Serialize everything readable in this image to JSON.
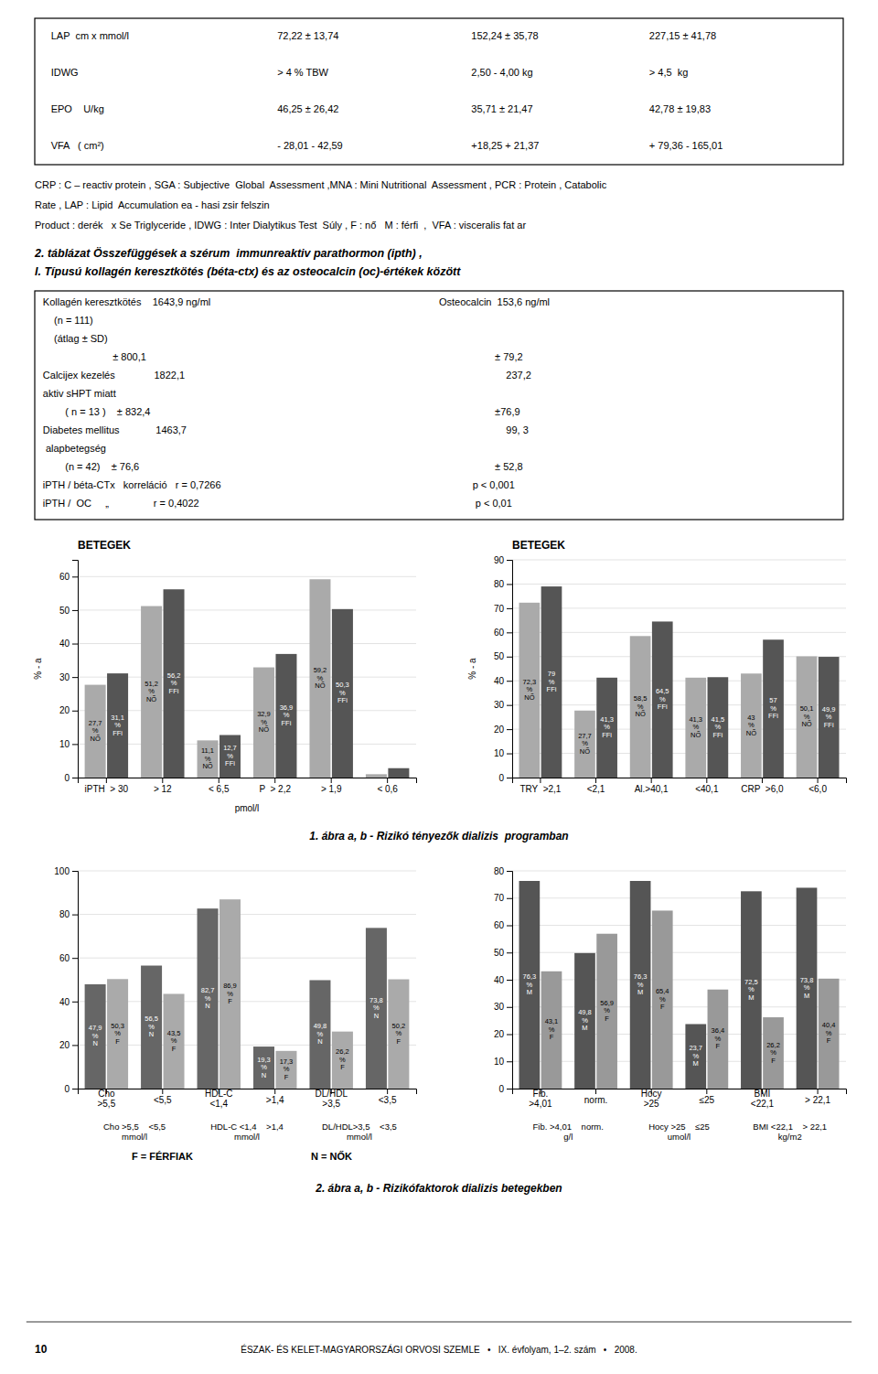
{
  "table1": {
    "rows": [
      [
        "LAP  cm x mmol/l",
        "72,22 ± 13,74",
        "152,24 ± 35,78",
        "227,15 ± 41,78"
      ],
      [
        "IDWG",
        "> 4 % TBW",
        "2,50 - 4,00 kg",
        "> 4,5  kg"
      ],
      [
        "EPO    U/kg",
        "46,25 ± 26,42",
        "35,71 ± 21,47",
        "42,78 ± 19,83"
      ],
      [
        "VFA   ( cm²)",
        "- 28,01 - 42,59",
        "+18,25 + 21,37",
        "+ 79,36 - 165,01"
      ]
    ]
  },
  "footnote": [
    "CRP : C – reactiv protein , SGA : Subjective  Global  Assessment ,MNA : Mini Nutritional  Assessment , PCR : Protein , Catabolic",
    "Rate , LAP : Lipid  Accumulation ea - hasi zsir felszin",
    "Product : derék   x Se Triglyceride , IDWG : Inter Dialytikus Test  Súly , F : nő   M : férfi  ,  VFA : visceralis fat ar"
  ],
  "table2": {
    "title": [
      "2. táblázat Összefüggések a szérum  immunreaktiv parathormon (ipth) ,",
      "I. Típusú kollagén keresztkötés (béta-ctx) és az osteocalcin (oc)-értékek között"
    ],
    "rows": [
      [
        "Kollagén keresztkötés    1643,9 ng/ml",
        "Osteocalcin  153,6 ng/ml"
      ],
      [
        "    (n = 111)"
      ],
      [
        "    (átlag ± SD)"
      ],
      [
        "                         ± 800,1",
        "                    ± 79,2"
      ],
      [
        "Calcijex kezelés              1822,1",
        "                        237,2"
      ],
      [
        "aktiv sHPT miatt"
      ],
      [
        "        ( n = 13 )    ± 832,4",
        "                    ±76,9"
      ],
      [
        "Diabetes mellitus             1463,7",
        "                        99, 3"
      ],
      [
        " alapbetegség"
      ],
      [
        "        (n = 42)    ± 76,6",
        "                    ± 52,8"
      ],
      [
        "iPTH / béta-CTx   korreláció   r = 0,7266",
        "            p < 0,001"
      ],
      [
        "iPTH /  OC     „                r = 0,4022",
        "             p < 0,01"
      ]
    ]
  },
  "chart_data": [
    {
      "type": "bar",
      "title": "BETEGEK",
      "ylabel": "% - a",
      "xlabel": "pmol/l",
      "categories": [
        "iPTH  > 30",
        "> 12",
        "< 6,5",
        "P  > 2,2",
        "> 1,9",
        "< 0,6"
      ],
      "series": [
        {
          "color": "#aaaaaa",
          "values": [
            27.7,
            51.2,
            11.1,
            32.9,
            59.2,
            1.0
          ],
          "value_labels": [
            "27,7\n%\nNŐ",
            "51,2\n%\nNŐ",
            "11,1\n%\nNŐ",
            "32,9\n%\nNŐ",
            "59,2\n%\nNŐ",
            null
          ]
        },
        {
          "color": "#555555",
          "values": [
            31.1,
            56.2,
            12.7,
            36.9,
            50.3,
            2.8
          ],
          "value_labels": [
            "31,1\n%\nFFi",
            "56,2\n%\nFFi",
            "12,7\n%\nFFi",
            "36,9\n%\nFFi",
            "50,3\n%\nFFi",
            null
          ]
        }
      ],
      "ylim": [
        0,
        65
      ],
      "yticks": [
        0,
        10,
        20,
        30,
        40,
        50,
        60
      ],
      "grid": true
    },
    {
      "type": "bar",
      "title": "BETEGEK",
      "ylabel": "% - a",
      "categories": [
        "TRY  >2,1",
        "<2,1",
        "Al.>40,1",
        "<40,1",
        "CRP  >6,0",
        "<6,0"
      ],
      "series": [
        {
          "color": "#aaaaaa",
          "values": [
            72.3,
            27.7,
            58.5,
            41.3,
            43.0,
            50.1
          ],
          "value_labels": [
            "72,3\n%\nNŐ",
            "27,7\n%\nNŐ",
            "58,5\n%\nNŐ",
            "41,3\n%\nNŐ",
            "43\n%\nNŐ",
            "50,1\n%\nNŐ"
          ]
        },
        {
          "color": "#555555",
          "values": [
            79.0,
            41.3,
            64.5,
            41.5,
            57.0,
            49.9
          ],
          "value_labels": [
            "79\n%\nFFi",
            "41,3\n%\nFFi",
            "64,5\n%\nFFi",
            "41,5\n%\nFFi",
            "57\n%\nFFi",
            "49,9\n%\nFFi"
          ]
        }
      ],
      "ylim": [
        0,
        90
      ],
      "yticks": [
        0,
        10,
        20,
        30,
        40,
        50,
        60,
        70,
        80,
        90
      ],
      "grid": true
    },
    {
      "type": "bar",
      "categories": [
        "Cho\n>5,5",
        "<5,5",
        "HDL-C\n<1,4",
        ">1,4",
        "DL/HDL\n>3,5",
        "<3,5"
      ],
      "series": [
        {
          "color": "#666666",
          "values": [
            47.9,
            56.5,
            82.7,
            19.3,
            49.8,
            73.8
          ],
          "value_labels": [
            "47,9\n%\nN",
            "56,5\n%\nN",
            "82,7\n%\nN",
            "19,3\n%\nN",
            "49,8\n%\nN",
            "73,8\n%\nN"
          ]
        },
        {
          "color": "#aaaaaa",
          "values": [
            50.3,
            43.5,
            86.9,
            17.3,
            26.2,
            50.2
          ],
          "value_labels": [
            "50,3\n%\nF",
            "43,5\n%\nF",
            "86,9\n%\nF",
            "17,3\n%\nF",
            "26,2\n%\nF",
            "50,2\n%\nF"
          ]
        }
      ],
      "group_labels": [
        "Cho >5,5    <5,5\nmmol/l",
        "HDL-C <1,4    >1,4\nmmol/l",
        "DL/HDL>3,5    <3,5\nmmol/l"
      ],
      "annotations": [
        "F = FÉRFIAK",
        "N = NŐK"
      ],
      "ylim": [
        0,
        100
      ],
      "yticks": [
        0,
        20,
        40,
        60,
        80,
        100
      ],
      "grid": true
    },
    {
      "type": "bar",
      "categories": [
        "Fib.\n>4,01",
        "norm.",
        "Hocy\n>25",
        "≤25",
        "BMI\n<22,1",
        "> 22,1"
      ],
      "series": [
        {
          "color": "#555555",
          "values": [
            76.3,
            49.8,
            76.3,
            23.7,
            72.5,
            73.8
          ],
          "value_labels": [
            "76,3\n%\nM",
            "49,8\n%\nM",
            "76,3\n%\nM",
            "23,7\n%\nM",
            "72,5\n%\nM",
            "73,8\n%\nM"
          ]
        },
        {
          "color": "#999999",
          "values": [
            43.1,
            56.9,
            65.4,
            36.4,
            26.2,
            40.4
          ],
          "value_labels": [
            "43,1\n%\nF",
            "56,9\n%\nF",
            "65,4\n%\nF",
            "36,4\n%\nF",
            "26,2\n%\nF",
            "40,4\n%\nF"
          ]
        }
      ],
      "group_labels": [
        "Fib. >4,01    norm.\ng/l",
        "Hocy >25    ≤25\numol/l",
        "BMI <22,1    > 22,1\nkg/m2"
      ],
      "ylim": [
        0,
        80
      ],
      "yticks": [
        0,
        10,
        20,
        30,
        40,
        50,
        60,
        70,
        80
      ],
      "grid": true
    }
  ],
  "captions": [
    "1. ábra a, b - Rizikó tényezők dializis  programban",
    "2. ábra a, b - Rizikófaktorok dializis betegekben"
  ],
  "footer": {
    "page_num": "10",
    "text": "ÉSZAK- ÉS KELET-MAGYARORSZÁGI ORVOSI SZEMLE   •   IX. évfolyam, 1–2. szám   •   2008."
  }
}
